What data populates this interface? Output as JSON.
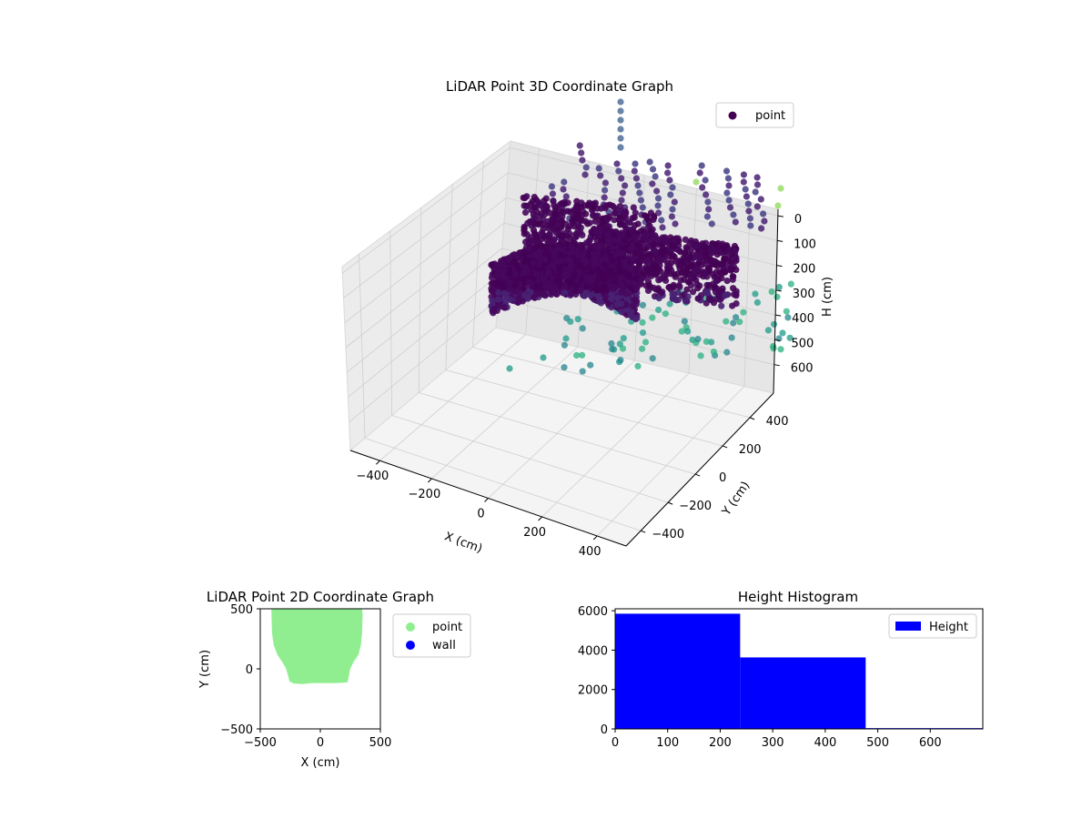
{
  "chart_data": [
    {
      "type": "scatter",
      "projection": "3d",
      "title": "LiDAR Point 3D Coordinate Graph",
      "xlabel": "X (cm)",
      "ylabel": "Y (cm)",
      "zlabel": "H (cm)",
      "xticks": [
        "−400",
        "−200",
        "0",
        "200",
        "400"
      ],
      "yticks": [
        "400",
        "200",
        "0",
        "−200",
        "−400"
      ],
      "zticks": [
        "0",
        "100",
        "200",
        "300",
        "400",
        "500",
        "600"
      ],
      "zaxis_inverted": true,
      "xlim": [
        -500,
        500
      ],
      "ylim": [
        -500,
        500
      ],
      "zlim": [
        0,
        650
      ],
      "legend": {
        "placement": "upper-right",
        "entries": [
          {
            "label": "point",
            "color": "#440154"
          }
        ]
      },
      "colormap": "viridis",
      "grid": true
    },
    {
      "type": "scatter",
      "title": "LiDAR Point 2D Coordinate Graph",
      "xlabel": "X (cm)",
      "ylabel": "Y (cm)",
      "xlim": [
        -500,
        500
      ],
      "ylim": [
        -500,
        500
      ],
      "xticks": [
        "−500",
        "0",
        "500"
      ],
      "yticks": [
        "500",
        "0",
        "−500"
      ],
      "series": [
        {
          "name": "point",
          "color": "#90ee90",
          "region_outline_xy": [
            [
              -400,
              500
            ],
            [
              -395,
              300
            ],
            [
              -380,
              200
            ],
            [
              -350,
              120
            ],
            [
              -310,
              60
            ],
            [
              -280,
              10
            ],
            [
              -260,
              -60
            ],
            [
              -250,
              -100
            ],
            [
              -220,
              -115
            ],
            [
              -150,
              -120
            ],
            [
              -80,
              -112
            ],
            [
              0,
              -110
            ],
            [
              80,
              -112
            ],
            [
              160,
              -110
            ],
            [
              220,
              -105
            ],
            [
              230,
              -60
            ],
            [
              240,
              0
            ],
            [
              270,
              60
            ],
            [
              310,
              120
            ],
            [
              330,
              200
            ],
            [
              340,
              300
            ],
            [
              345,
              450
            ],
            [
              340,
              500
            ]
          ]
        },
        {
          "name": "wall",
          "color": "#0000ff",
          "points": []
        }
      ],
      "legend": {
        "placement": "outside-right"
      }
    },
    {
      "type": "bar",
      "title": "Height Histogram",
      "xlabel": "",
      "ylabel": "",
      "bins": [
        [
          0,
          238
        ],
        [
          238,
          477
        ],
        [
          477,
          700
        ]
      ],
      "values": [
        5850,
        3630,
        40
      ],
      "xlim": [
        0,
        700
      ],
      "ylim": [
        0,
        6100
      ],
      "xticks": [
        "0",
        "100",
        "200",
        "300",
        "400",
        "500",
        "600"
      ],
      "yticks": [
        "0",
        "2000",
        "4000",
        "6000"
      ],
      "series": [
        {
          "name": "Height",
          "color": "#0000ff"
        }
      ],
      "legend": {
        "placement": "upper-right"
      }
    }
  ]
}
